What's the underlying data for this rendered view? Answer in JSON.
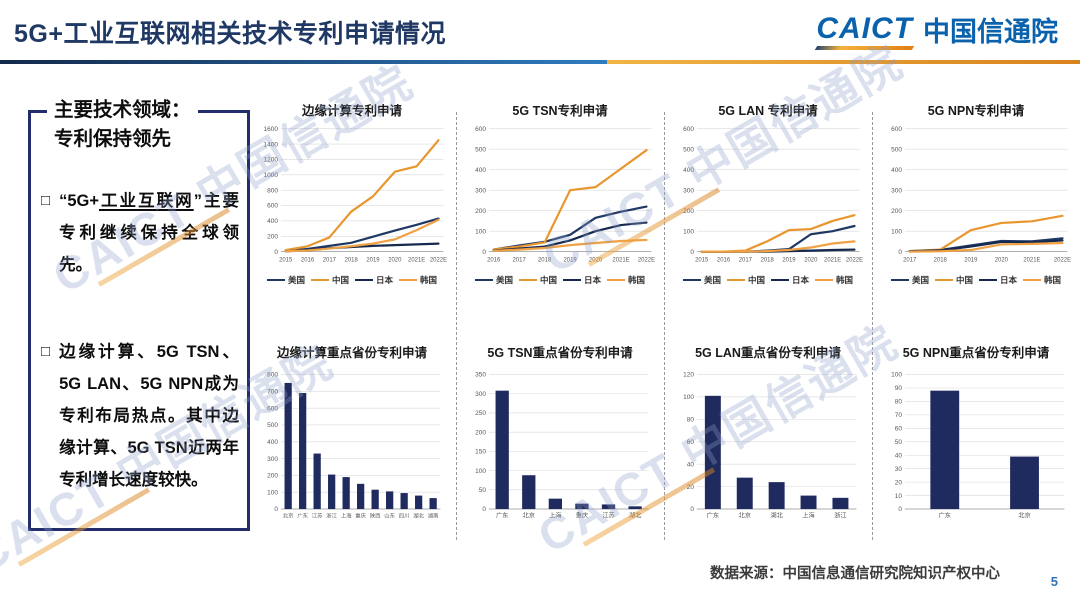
{
  "header": {
    "title": "5G+工业互联网相关技术专利申请情况",
    "logo_latin": "CAICT",
    "logo_cn": "中国信通院"
  },
  "sidebar": {
    "title_line1": "主要技术领域：",
    "title_line2": "专利保持领先",
    "bullet_marker": "□",
    "bullet1_pre": "“5G+",
    "bullet1_underlined": "工业互联网",
    "bullet1_post": "”主要专利继续保持全球领先。",
    "bullet2": "边缘计算、5G TSN、5G LAN、5G NPN成为专利布局热点。其中边缘计算、5G TSN近两年专利增长速度较快。"
  },
  "footer": {
    "source": "数据来源：中国信息通信研究院知识产权中心",
    "page_number": "5"
  },
  "watermark_text": "CAICT 中国信通院",
  "colors": {
    "title_navy": "#1F3864",
    "logo_blue": "#0A62AC",
    "accent_orange": "#E8962E",
    "bar_navy": "#1F2A5E"
  },
  "chart_data": [
    {
      "type": "line",
      "title": "边缘计算专利申请",
      "x": [
        "2015",
        "2016",
        "2017",
        "2018",
        "2019",
        "2020",
        "2021E",
        "2022E"
      ],
      "ymax": 1600,
      "ystep": 200,
      "grid": true,
      "legend_position": "bottom",
      "series": [
        {
          "name": "美国",
          "color": "#1F3864",
          "values": [
            10,
            35,
            75,
            115,
            195,
            275,
            350,
            430
          ]
        },
        {
          "name": "中国",
          "color": "#E8962E",
          "values": [
            20,
            70,
            185,
            520,
            720,
            1040,
            1110,
            1450
          ]
        },
        {
          "name": "日本",
          "color": "#16294F",
          "values": [
            5,
            20,
            45,
            60,
            75,
            85,
            95,
            105
          ]
        },
        {
          "name": "韩国",
          "color": "#EFA143",
          "values": [
            5,
            15,
            40,
            70,
            105,
            160,
            280,
            415
          ]
        }
      ]
    },
    {
      "type": "line",
      "title": "5G TSN专利申请",
      "x": [
        "2016",
        "2017",
        "2018",
        "2019",
        "2020",
        "2021E",
        "2022E"
      ],
      "ymax": 600,
      "ystep": 100,
      "grid": true,
      "legend_position": "bottom",
      "series": [
        {
          "name": "美国",
          "color": "#1F3864",
          "values": [
            10,
            30,
            48,
            82,
            165,
            195,
            220
          ]
        },
        {
          "name": "中国",
          "color": "#E8962E",
          "values": [
            10,
            25,
            45,
            300,
            315,
            405,
            495
          ]
        },
        {
          "name": "日本",
          "color": "#16294F",
          "values": [
            5,
            15,
            25,
            55,
            100,
            130,
            142
          ]
        },
        {
          "name": "韩国",
          "color": "#EFA143",
          "values": [
            4,
            10,
            18,
            32,
            42,
            52,
            57
          ]
        }
      ]
    },
    {
      "type": "line",
      "title": "5G LAN 专利申请",
      "x": [
        "2015",
        "2016",
        "2017",
        "2018",
        "2019",
        "2020",
        "2021E",
        "2022E"
      ],
      "ymax": 600,
      "ystep": 100,
      "grid": true,
      "legend_position": "bottom",
      "series": [
        {
          "name": "美国",
          "color": "#1F3864",
          "values": [
            0,
            0,
            0,
            5,
            12,
            85,
            100,
            125
          ]
        },
        {
          "name": "中国",
          "color": "#E8962E",
          "values": [
            0,
            0,
            5,
            50,
            105,
            110,
            150,
            178
          ]
        },
        {
          "name": "日本",
          "color": "#16294F",
          "values": [
            0,
            0,
            0,
            0,
            3,
            5,
            8,
            10
          ]
        },
        {
          "name": "韩国",
          "color": "#EFA143",
          "values": [
            0,
            0,
            0,
            3,
            8,
            20,
            40,
            50
          ]
        }
      ]
    },
    {
      "type": "line",
      "title": "5G NPN专利申请",
      "x": [
        "2017",
        "2018",
        "2019",
        "2020",
        "2021E",
        "2022E"
      ],
      "ymax": 600,
      "ystep": 100,
      "grid": true,
      "legend_position": "bottom",
      "series": [
        {
          "name": "美国",
          "color": "#1F3864",
          "values": [
            3,
            8,
            30,
            52,
            50,
            65
          ]
        },
        {
          "name": "中国",
          "color": "#E8962E",
          "values": [
            3,
            10,
            105,
            140,
            148,
            175
          ]
        },
        {
          "name": "日本",
          "color": "#16294F",
          "values": [
            2,
            6,
            25,
            48,
            45,
            55
          ]
        },
        {
          "name": "韩国",
          "color": "#EFA143",
          "values": [
            0,
            2,
            8,
            35,
            38,
            42
          ]
        }
      ]
    },
    {
      "type": "bar",
      "title": "边缘计算重点省份专利申请",
      "categories": [
        "北京",
        "广东",
        "江苏",
        "浙江",
        "上海",
        "重庆",
        "陕西",
        "山东",
        "四川",
        "湖北",
        "湖南"
      ],
      "values": [
        750,
        690,
        330,
        205,
        190,
        150,
        115,
        105,
        95,
        80,
        65
      ],
      "ymax": 800,
      "ystep": 100,
      "grid": true,
      "bar_color": "#1F2A5E"
    },
    {
      "type": "bar",
      "title": "5G TSN重点省份专利申请",
      "categories": [
        "广东",
        "北京",
        "上海",
        "重庆",
        "江苏",
        "湖北"
      ],
      "values": [
        308,
        88,
        27,
        14,
        12,
        7
      ],
      "ymax": 350,
      "ystep": 50,
      "grid": true,
      "bar_color": "#1F2A5E"
    },
    {
      "type": "bar",
      "title": "5G LAN重点省份专利申请",
      "categories": [
        "广东",
        "北京",
        "湖北",
        "上海",
        "浙江"
      ],
      "values": [
        101,
        28,
        24,
        12,
        10
      ],
      "ymax": 120,
      "ystep": 20,
      "grid": true,
      "bar_color": "#1F2A5E"
    },
    {
      "type": "bar",
      "title": "5G NPN重点省份专利申请",
      "categories": [
        "广东",
        "北京"
      ],
      "values": [
        88,
        39
      ],
      "ymax": 100,
      "ystep": 10,
      "grid": true,
      "bar_color": "#1F2A5E"
    }
  ]
}
